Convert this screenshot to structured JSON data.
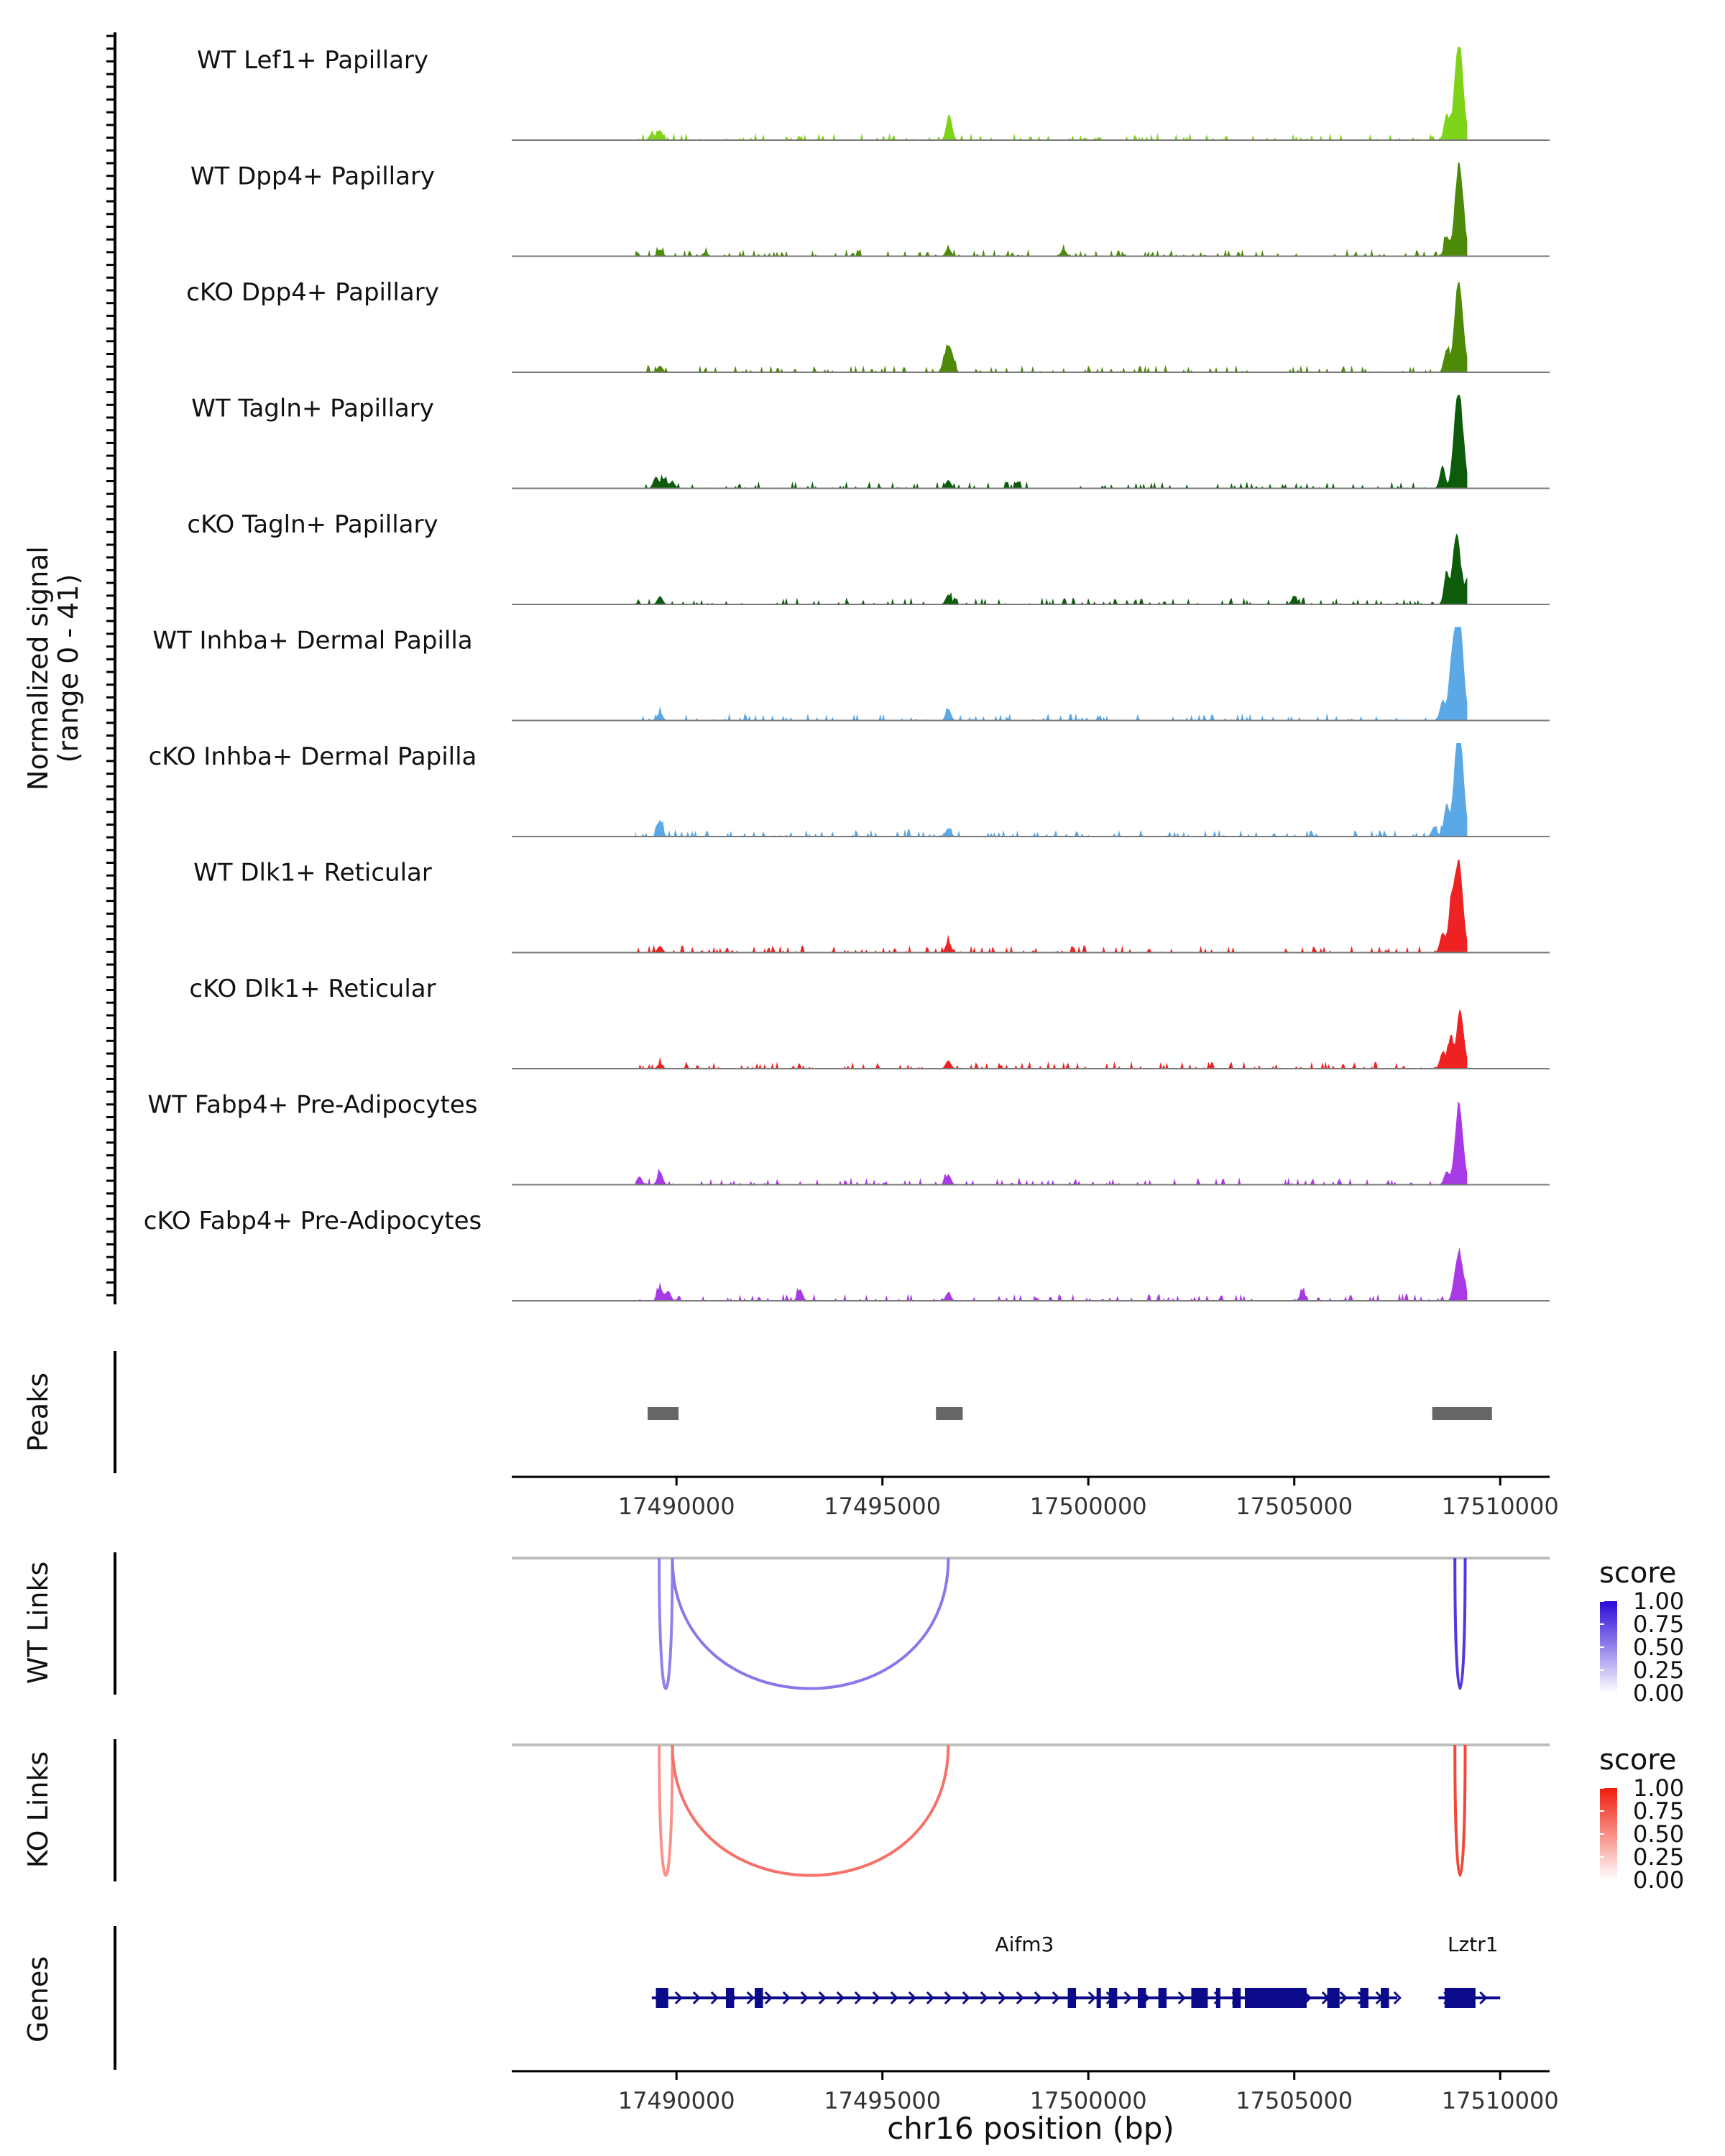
{
  "chart_data": {
    "type": "area",
    "title": "",
    "y_axis_label_line1": "Normalized signal",
    "y_axis_label_line2": "(range 0 - 41)",
    "x_axis_label": "chr16 position (bp)",
    "xlim": [
      17486000,
      17511200
    ],
    "y_range": [
      0,
      41
    ],
    "x_ticks": [
      17490000,
      17495000,
      17500000,
      17505000,
      17510000
    ],
    "x_tick_labels": [
      "17490000",
      "17495000",
      "17500000",
      "17505000",
      "17510000"
    ],
    "tracks": [
      {
        "name": "WT Lef1+ Papillary",
        "color": "#7fd41a",
        "max": 28,
        "peaks": [
          [
            17489600,
            3
          ],
          [
            17489400,
            2
          ],
          [
            17496600,
            5
          ],
          [
            17496650,
            3.5
          ],
          [
            17508700,
            8
          ],
          [
            17508900,
            13
          ],
          [
            17509000,
            23
          ],
          [
            17509100,
            11
          ],
          [
            17509300,
            5
          ]
        ]
      },
      {
        "name": "WT Dpp4+ Papillary",
        "color": "#4d8a08",
        "max": 28,
        "peaks": [
          [
            17489600,
            2
          ],
          [
            17489000,
            1.5
          ],
          [
            17490700,
            1.2
          ],
          [
            17496600,
            2.5
          ],
          [
            17499400,
            2
          ],
          [
            17508700,
            6
          ],
          [
            17508900,
            10
          ],
          [
            17509000,
            22
          ],
          [
            17509100,
            11
          ],
          [
            17509300,
            5
          ]
        ]
      },
      {
        "name": "cKO Dpp4+ Papillary",
        "color": "#4d8a08",
        "max": 28,
        "peaks": [
          [
            17489600,
            2
          ],
          [
            17496500,
            3
          ],
          [
            17496600,
            6
          ],
          [
            17496700,
            4
          ],
          [
            17508700,
            7
          ],
          [
            17508900,
            12
          ],
          [
            17509000,
            21
          ],
          [
            17509100,
            10
          ],
          [
            17509300,
            5
          ]
        ]
      },
      {
        "name": "WT Tagln+ Papillary",
        "color": "#0c5c0c",
        "max": 28,
        "peaks": [
          [
            17489500,
            3.5
          ],
          [
            17489700,
            3
          ],
          [
            17489900,
            2
          ],
          [
            17496600,
            2.5
          ],
          [
            17508600,
            7
          ],
          [
            17508900,
            16
          ],
          [
            17509000,
            21
          ],
          [
            17509100,
            11
          ],
          [
            17509300,
            4
          ]
        ]
      },
      {
        "name": "cKO Tagln+ Papillary",
        "color": "#0c5c0c",
        "max": 28,
        "peaks": [
          [
            17489600,
            2.5
          ],
          [
            17496600,
            3
          ],
          [
            17505000,
            2.5
          ],
          [
            17508700,
            10
          ],
          [
            17508900,
            15
          ],
          [
            17509000,
            14
          ],
          [
            17509200,
            8
          ],
          [
            17509400,
            3
          ]
        ]
      },
      {
        "name": "WT Inhba+ Dermal Papilla",
        "color": "#5aa8e6",
        "max": 28,
        "peaks": [
          [
            17489600,
            2.5
          ],
          [
            17496600,
            3.5
          ],
          [
            17508600,
            6
          ],
          [
            17508800,
            14
          ],
          [
            17508900,
            16
          ],
          [
            17509000,
            27
          ],
          [
            17509100,
            12
          ],
          [
            17509300,
            4
          ]
        ]
      },
      {
        "name": "cKO Inhba+ Dermal Papilla",
        "color": "#5aa8e6",
        "max": 28,
        "peaks": [
          [
            17489600,
            5
          ],
          [
            17496600,
            2.5
          ],
          [
            17508400,
            3
          ],
          [
            17508700,
            10
          ],
          [
            17508900,
            15
          ],
          [
            17509000,
            28
          ],
          [
            17509100,
            13
          ],
          [
            17509300,
            5
          ]
        ]
      },
      {
        "name": "WT Dlk1+ Reticular",
        "color": "#ee2222",
        "max": 28,
        "peaks": [
          [
            17489600,
            2
          ],
          [
            17496600,
            3.5
          ],
          [
            17508600,
            6
          ],
          [
            17508800,
            13
          ],
          [
            17508900,
            12
          ],
          [
            17509000,
            22
          ],
          [
            17509100,
            9
          ],
          [
            17509300,
            3
          ]
        ]
      },
      {
        "name": "cKO Dlk1+ Reticular",
        "color": "#ee2222",
        "max": 28,
        "peaks": [
          [
            17489600,
            1.5
          ],
          [
            17496600,
            2.5
          ],
          [
            17508600,
            5
          ],
          [
            17508800,
            10
          ],
          [
            17509000,
            15
          ],
          [
            17509100,
            8
          ],
          [
            17509300,
            3
          ]
        ]
      },
      {
        "name": "WT Fabp4+ Pre-Adipocytes",
        "color": "#a83ae6",
        "max": 28,
        "peaks": [
          [
            17489600,
            4
          ],
          [
            17489100,
            2.5
          ],
          [
            17496600,
            3
          ],
          [
            17508700,
            4
          ],
          [
            17508900,
            8
          ],
          [
            17509000,
            20
          ],
          [
            17509100,
            8
          ],
          [
            17509300,
            3
          ]
        ]
      },
      {
        "name": "cKO Fabp4+ Pre-Adipocytes",
        "color": "#a83ae6",
        "max": 28,
        "peaks": [
          [
            17489600,
            4
          ],
          [
            17489800,
            3
          ],
          [
            17493000,
            3.5
          ],
          [
            17496600,
            2.5
          ],
          [
            17505200,
            3
          ],
          [
            17508900,
            6
          ],
          [
            17509000,
            11
          ],
          [
            17509100,
            6
          ],
          [
            17509300,
            2
          ]
        ]
      }
    ],
    "peaks_track": {
      "label": "Peaks",
      "color": "#666666",
      "regions": [
        [
          17489300,
          17490050
        ],
        [
          17496300,
          17496950
        ],
        [
          17508350,
          17509800
        ]
      ]
    },
    "links_tracks": [
      {
        "label": "WT Links",
        "legend_title": "score",
        "low_color": "#ffffff",
        "high_color": "#2a0ad8",
        "legend_labels": [
          "1.00",
          "0.75",
          "0.50",
          "0.25",
          "0.00"
        ],
        "links": [
          {
            "start": 17489580,
            "end": 17489900,
            "score": 0.35,
            "depth": 1.0
          },
          {
            "start": 17489900,
            "end": 17496600,
            "score": 0.4,
            "depth": 1.0
          },
          {
            "start": 17508900,
            "end": 17509150,
            "score": 0.75,
            "depth": 1.0
          }
        ]
      },
      {
        "label": "KO Links",
        "legend_title": "score",
        "low_color": "#ffffff",
        "high_color": "#f01c0c",
        "legend_labels": [
          "1.00",
          "0.75",
          "0.50",
          "0.25",
          "0.00"
        ],
        "links": [
          {
            "start": 17489580,
            "end": 17489900,
            "score": 0.3,
            "depth": 1.0
          },
          {
            "start": 17489900,
            "end": 17496600,
            "score": 0.5,
            "depth": 1.0
          },
          {
            "start": 17508900,
            "end": 17509150,
            "score": 0.75,
            "depth": 1.0
          }
        ]
      }
    ],
    "genes_track": {
      "label": "Genes",
      "color": "#0a0a8a",
      "genes": [
        {
          "name": "Aifm3",
          "start": 17489400,
          "end": 17507500,
          "exons": [
            [
              17489500,
              17489800
            ],
            [
              17491200,
              17491400
            ],
            [
              17491900,
              17492100
            ],
            [
              17499500,
              17499700
            ],
            [
              17500200,
              17500300
            ],
            [
              17500500,
              17500700
            ],
            [
              17501200,
              17501400
            ],
            [
              17501700,
              17501900
            ],
            [
              17502500,
              17502900
            ],
            [
              17503100,
              17503200
            ],
            [
              17503500,
              17503700
            ],
            [
              17503800,
              17505300
            ],
            [
              17505800,
              17506100
            ],
            [
              17506600,
              17506800
            ],
            [
              17507100,
              17507300
            ]
          ]
        },
        {
          "name": "Lztr1",
          "start": 17508500,
          "end": 17510000,
          "exons": [
            [
              17508650,
              17509400
            ]
          ]
        }
      ]
    }
  }
}
